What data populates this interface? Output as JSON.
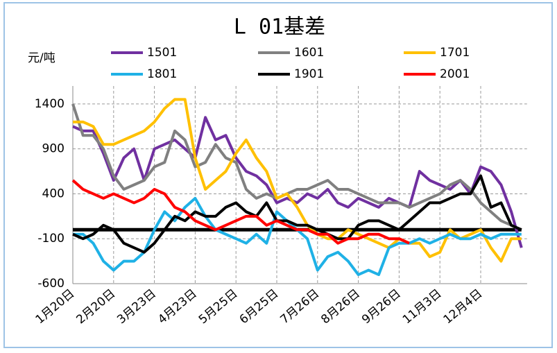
{
  "chart_data": {
    "type": "line",
    "title": "L 01基差",
    "y_label": "元/吨",
    "categories": [
      "1月20日",
      null,
      null,
      null,
      "2月20日",
      null,
      null,
      null,
      "3月23日",
      null,
      null,
      null,
      "4月23日",
      null,
      null,
      null,
      "5月25日",
      null,
      null,
      null,
      "6月25日",
      null,
      null,
      null,
      "7月26日",
      null,
      null,
      null,
      "8月26日",
      null,
      null,
      null,
      "9月26日",
      null,
      null,
      null,
      "11月3日",
      null,
      null,
      null,
      "12月4日",
      null,
      null,
      null,
      null
    ],
    "ylim": [
      -600,
      1600
    ],
    "yticks": [
      1400,
      900,
      400,
      -100,
      -600
    ],
    "grid": true,
    "series": [
      {
        "name": "1501",
        "color": "#7030a0",
        "values": [
          1150,
          1100,
          1100,
          850,
          550,
          800,
          900,
          550,
          900,
          950,
          1000,
          900,
          800,
          1250,
          1000,
          1050,
          800,
          650,
          600,
          500,
          300,
          350,
          300,
          400,
          350,
          450,
          300,
          250,
          350,
          300,
          250,
          350,
          300,
          250,
          650,
          550,
          500,
          450,
          550,
          400,
          700,
          650,
          500,
          200,
          -200
        ]
      },
      {
        "name": "1601",
        "color": "#808080",
        "values": [
          1400,
          1050,
          1050,
          900,
          600,
          450,
          500,
          550,
          700,
          750,
          1100,
          1000,
          700,
          750,
          950,
          800,
          750,
          450,
          350,
          400,
          350,
          400,
          450,
          450,
          500,
          550,
          450,
          450,
          400,
          350,
          300,
          300,
          300,
          250,
          300,
          350,
          400,
          500,
          550,
          450,
          300,
          200,
          100,
          50,
          0
        ]
      },
      {
        "name": "1701",
        "color": "#ffc000",
        "values": [
          1200,
          1200,
          1150,
          950,
          950,
          1000,
          1050,
          1100,
          1200,
          1350,
          1450,
          1450,
          800,
          450,
          550,
          650,
          850,
          1000,
          800,
          650,
          350,
          400,
          250,
          50,
          -50,
          -100,
          -100,
          0,
          -50,
          -100,
          -150,
          -200,
          -100,
          -150,
          -150,
          -300,
          -250,
          0,
          -100,
          -50,
          0,
          -200,
          -350,
          -100,
          -100
        ]
      },
      {
        "name": "1801",
        "color": "#1fb1e6",
        "values": [
          -50,
          -50,
          -150,
          -350,
          -450,
          -350,
          -350,
          -250,
          0,
          200,
          100,
          250,
          350,
          150,
          0,
          -50,
          -100,
          -150,
          -50,
          -150,
          200,
          100,
          0,
          -100,
          -450,
          -300,
          -250,
          -350,
          -500,
          -450,
          -500,
          -200,
          -150,
          -150,
          -100,
          -150,
          -100,
          -50,
          -100,
          -100,
          -50,
          -100,
          -50,
          -50,
          -50
        ]
      },
      {
        "name": "1901",
        "color": "#000000",
        "values": [
          -50,
          -100,
          -50,
          50,
          0,
          -150,
          -200,
          -250,
          -150,
          0,
          150,
          100,
          200,
          150,
          150,
          250,
          300,
          200,
          150,
          300,
          100,
          100,
          50,
          50,
          0,
          -50,
          -100,
          -100,
          50,
          100,
          100,
          50,
          0,
          100,
          200,
          300,
          300,
          350,
          400,
          400,
          600,
          250,
          300,
          50,
          0
        ]
      },
      {
        "name": "2001",
        "color": "#ff0000",
        "values": [
          550,
          450,
          400,
          350,
          400,
          350,
          300,
          350,
          450,
          400,
          250,
          200,
          100,
          50,
          0,
          50,
          100,
          150,
          150,
          50,
          100,
          50,
          0,
          0,
          -50,
          -50,
          -150,
          -100,
          -100,
          -50,
          -50,
          -100,
          -100,
          -150,
          null,
          null,
          null,
          null,
          null,
          null,
          null,
          null,
          null,
          null,
          null
        ]
      }
    ]
  }
}
